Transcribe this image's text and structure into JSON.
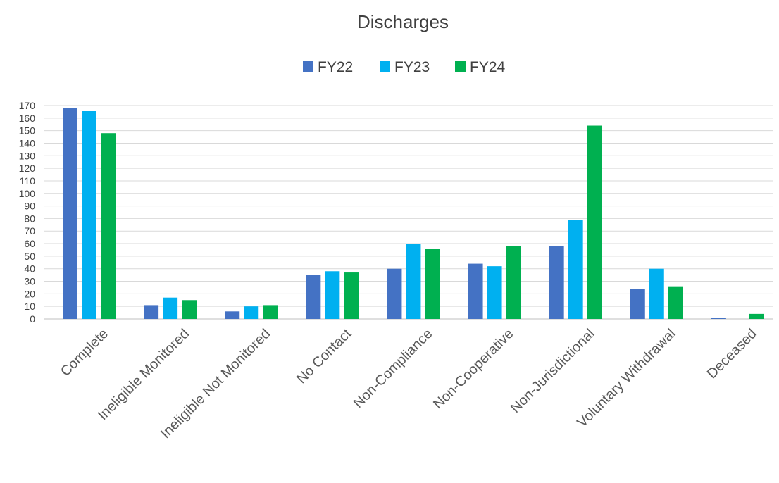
{
  "chart_data": {
    "type": "bar",
    "title": "Discharges",
    "xlabel": "",
    "ylabel": "",
    "ylim": [
      0,
      170
    ],
    "yticks": [
      0,
      10,
      20,
      30,
      40,
      50,
      60,
      70,
      80,
      90,
      100,
      110,
      120,
      130,
      140,
      150,
      160,
      170
    ],
    "grid": true,
    "legend_position": "top-center",
    "categories": [
      "Complete",
      "Ineligible Monitored",
      "Ineligible Not Monitored",
      "No Contact",
      "Non-Compliance",
      "Non-Cooperative",
      "Non-Jurisdictional",
      "Voluntary Withdrawal",
      "Deceased"
    ],
    "series": [
      {
        "name": "FY22",
        "color": "#4472c4",
        "values": [
          168,
          11,
          6,
          35,
          40,
          44,
          58,
          24,
          1
        ]
      },
      {
        "name": "FY23",
        "color": "#00b0f0",
        "values": [
          166,
          17,
          10,
          38,
          60,
          42,
          79,
          40,
          0
        ]
      },
      {
        "name": "FY24",
        "color": "#00b050",
        "values": [
          148,
          15,
          11,
          37,
          56,
          58,
          154,
          26,
          4
        ]
      }
    ]
  }
}
